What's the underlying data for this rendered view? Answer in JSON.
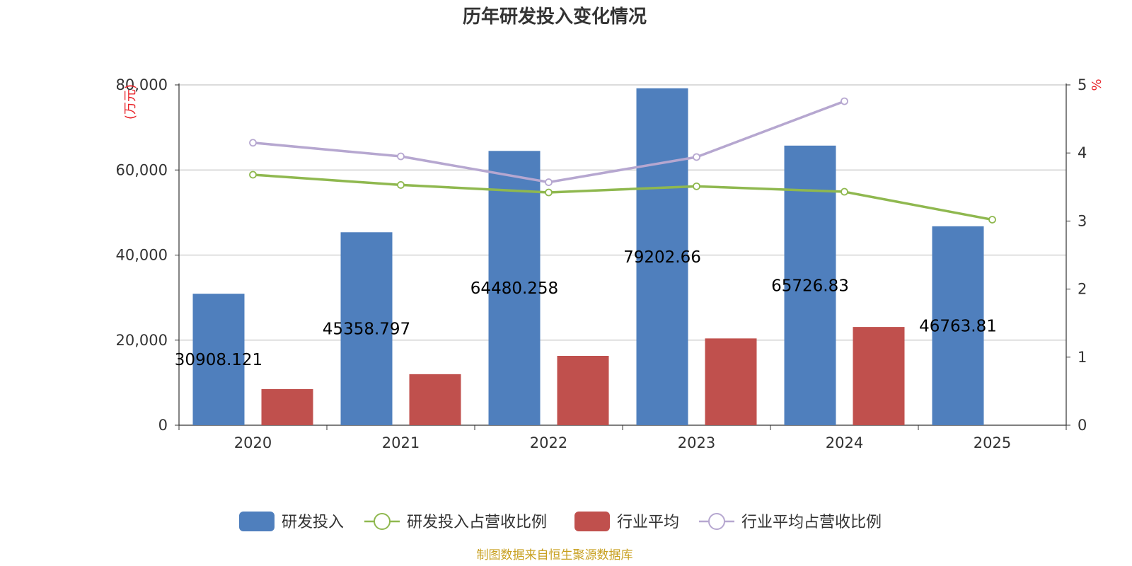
{
  "chart_data": {
    "type": "bar",
    "title": "历年研发投入变化情况",
    "categories": [
      "2020",
      "2021",
      "2022",
      "2023",
      "2024",
      "2025"
    ],
    "y_left": {
      "unit": "(万元)",
      "ylim": [
        0,
        80000
      ],
      "ticks": [
        0,
        20000,
        40000,
        60000,
        80000
      ],
      "tick_labels": [
        "0",
        "20,000",
        "40,000",
        "60,000",
        "80,000"
      ]
    },
    "y_right": {
      "unit": "%",
      "ylim": [
        0,
        5
      ],
      "ticks": [
        0,
        1,
        2,
        3,
        4,
        5
      ],
      "tick_labels": [
        "0",
        "1",
        "2",
        "3",
        "4",
        "5"
      ]
    },
    "series": [
      {
        "name": "研发投入",
        "type": "bar",
        "axis": "left",
        "color": "#4f7fbd",
        "values": [
          30908.121,
          45358.797,
          64480.258,
          79202.66,
          65726.83,
          46763.81
        ],
        "labels": [
          "30908.121",
          "45358.797",
          "64480.258",
          "79202.66",
          "65726.83",
          "46763.81"
        ]
      },
      {
        "name": "研发投入占营收比例",
        "type": "line",
        "axis": "right",
        "color": "#8fb84f",
        "values": [
          3.68,
          3.53,
          3.42,
          3.51,
          3.43,
          3.02
        ]
      },
      {
        "name": "行业平均",
        "type": "bar",
        "axis": "left",
        "color": "#c0504d",
        "values": [
          8500,
          12000,
          16300,
          20400,
          23100,
          null
        ]
      },
      {
        "name": "行业平均占营收比例",
        "type": "line",
        "axis": "right",
        "color": "#b6a7d0",
        "values": [
          4.15,
          3.95,
          3.57,
          3.94,
          4.76,
          null
        ]
      }
    ],
    "legend_position": "bottom",
    "source_note": "制图数据来自恒生聚源数据库"
  }
}
